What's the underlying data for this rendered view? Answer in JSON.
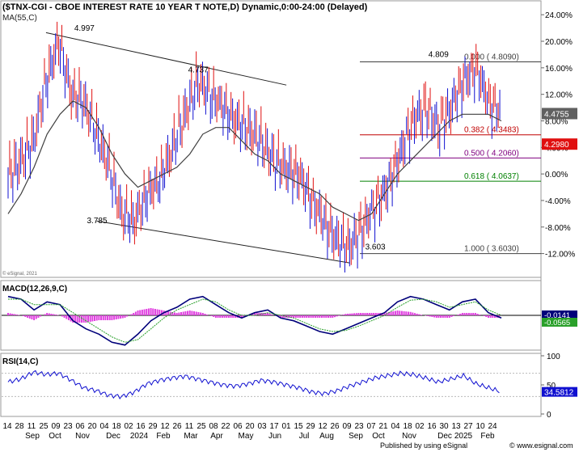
{
  "chart_data": [
    {
      "type": "line",
      "panel": "price",
      "title": "($TNX-CGI - CBOE INTEREST RATE 10 YEAR T NOTE,D) Dynamic,0:00-24:00 (Delayed)",
      "indicator_label": "MA(55,C)",
      "watermark": "© eSignal, 2021",
      "ylim": [
        -14,
        25
      ],
      "yticks": [
        "24.00%",
        "20.00%",
        "16.00%",
        "12.00%",
        "8.00%",
        "4.00%",
        "0.00%",
        "-4.00%",
        "-8.00%",
        "-12.00%"
      ],
      "ytick_values": [
        24,
        20,
        16,
        12,
        8,
        4,
        0,
        -4,
        -8,
        -12
      ],
      "grid": false,
      "series": [
        {
          "name": "MA(55,C)",
          "color": "#404040",
          "values": [
            -6,
            -3,
            1,
            6,
            9,
            11,
            10,
            7,
            3,
            0,
            -2,
            -1,
            0,
            1,
            3,
            6,
            7,
            7,
            5,
            3,
            2,
            0,
            -1,
            -2,
            -3,
            -5,
            -6,
            -7,
            -6,
            -3,
            0,
            2,
            4,
            6,
            8,
            9,
            9,
            9,
            8
          ]
        }
      ],
      "price_bars": {
        "color_up": "#1010d0",
        "color_down": "#e01010",
        "closes": [
          0,
          2,
          5,
          14,
          20,
          12,
          11,
          6,
          1,
          -6,
          -7,
          -3,
          -1,
          4,
          9,
          14,
          12,
          10,
          8,
          7,
          5,
          2,
          1,
          0,
          -4,
          -7,
          -10,
          -11,
          -8,
          -5,
          -2,
          3,
          8,
          10,
          7,
          10,
          14,
          16,
          11,
          9
        ]
      },
      "annotations": [
        {
          "label": "4.997",
          "x_index": 6,
          "y": 21.6
        },
        {
          "label": "4.737",
          "x_index": 15,
          "y": 15.3
        },
        {
          "label": "3.785",
          "x_index": 7,
          "y": -7.4
        },
        {
          "label": "3.603",
          "x_index": 29,
          "y": -11.4
        },
        {
          "label": "4.809",
          "x_index": 34,
          "y": 17.6
        }
      ],
      "trendlines": [
        {
          "from": [
            3,
            21.3
          ],
          "to": [
            22,
            13.4
          ]
        },
        {
          "from": [
            7,
            -7.1
          ],
          "to": [
            27,
            -13.4
          ]
        }
      ],
      "fib_levels": [
        {
          "label": "0.000 ( 4.8090)",
          "y": 16.9,
          "color": "#404040"
        },
        {
          "label": "0.382 ( 4.3483)",
          "y": 5.9,
          "color": "#c00000"
        },
        {
          "label": "0.500 ( 4.2060)",
          "y": 2.4,
          "color": "#800080"
        },
        {
          "label": "0.618 ( 4.0637)",
          "y": -1.1,
          "color": "#008000"
        },
        {
          "label": "1.000 ( 3.6030)",
          "y": -12.0,
          "color": "#404040"
        }
      ],
      "value_tags": [
        {
          "label": "4.4755",
          "y": 9.1,
          "bg": "#606060",
          "fg": "#ffffff"
        },
        {
          "label": "4.2980",
          "y": 4.5,
          "bg": "#e01010",
          "fg": "#ffffff"
        }
      ]
    },
    {
      "type": "line",
      "panel": "macd",
      "title": "MACD(12,26,9,C)",
      "ylim": [
        -0.6,
        0.6
      ],
      "series": [
        {
          "name": "MACD",
          "color": "#00007a",
          "values": [
            0.35,
            0.3,
            0.1,
            0.25,
            0.2,
            -0.1,
            -0.25,
            -0.35,
            -0.5,
            -0.55,
            -0.35,
            -0.1,
            0.05,
            0.15,
            0.3,
            0.35,
            0.2,
            0.05,
            -0.05,
            0.05,
            0.1,
            -0.05,
            -0.1,
            -0.2,
            -0.3,
            -0.35,
            -0.25,
            -0.15,
            -0.05,
            0.05,
            0.25,
            0.35,
            0.3,
            0.2,
            0.1,
            0.25,
            0.3,
            0.05,
            -0.05
          ]
        },
        {
          "name": "Signal",
          "color": "#2aa02a",
          "values": [
            0.3,
            0.3,
            0.2,
            0.2,
            0.2,
            0.05,
            -0.1,
            -0.25,
            -0.4,
            -0.5,
            -0.45,
            -0.25,
            -0.05,
            0.1,
            0.2,
            0.3,
            0.25,
            0.1,
            0,
            0,
            0.05,
            0,
            -0.05,
            -0.15,
            -0.25,
            -0.3,
            -0.28,
            -0.2,
            -0.1,
            0,
            0.15,
            0.28,
            0.3,
            0.25,
            0.15,
            0.2,
            0.25,
            0.1,
            0
          ]
        }
      ],
      "hist_color": "#e040e0",
      "value_tags": [
        {
          "label": "-0.0141",
          "bg": "#00007a",
          "fg": "#ffffff"
        },
        {
          "label": "-0.0565",
          "bg": "#2aa02a",
          "fg": "#ffffff"
        }
      ]
    },
    {
      "type": "line",
      "panel": "rsi",
      "title": "RSI(14,C)",
      "ylim": [
        0,
        100
      ],
      "yticks": [
        "100",
        "50",
        "0"
      ],
      "ytick_values": [
        100,
        50,
        0
      ],
      "bands": [
        70,
        30
      ],
      "series": [
        {
          "name": "RSI(14,C)",
          "color": "#1010d0",
          "values": [
            55,
            60,
            72,
            68,
            70,
            58,
            45,
            40,
            32,
            30,
            38,
            52,
            58,
            62,
            65,
            60,
            55,
            50,
            48,
            52,
            58,
            55,
            50,
            45,
            38,
            35,
            40,
            48,
            55,
            62,
            66,
            70,
            68,
            62,
            55,
            60,
            66,
            52,
            45,
            38
          ]
        }
      ],
      "value_tags": [
        {
          "label": "34.5812",
          "bg": "#1010d0",
          "fg": "#ffffff"
        }
      ]
    }
  ],
  "xaxis": {
    "day_ticks": [
      "14",
      "28",
      "11",
      "25",
      "09",
      "23",
      "06",
      "20",
      "04",
      "18",
      "02",
      "16",
      "29",
      "12",
      "26",
      "11",
      "25",
      "08",
      "22",
      "06",
      "20",
      "03",
      "17",
      "01",
      "15",
      "29",
      "12",
      "26",
      "09",
      "23",
      "07",
      "21",
      "04",
      "18",
      "02",
      "16",
      "30",
      "13",
      "27",
      "10",
      "24"
    ],
    "month_labels": [
      "Sep",
      "Oct",
      "Nov",
      "Dec",
      "2024",
      "Feb",
      "Mar",
      "Apr",
      "May",
      "Jun",
      "Jul",
      "Aug",
      "Sep",
      "Oct",
      "Nov",
      "Dec",
      "2025",
      "Feb"
    ],
    "publisher": "Published by using eSignal",
    "site": "© www.esignal.com"
  }
}
